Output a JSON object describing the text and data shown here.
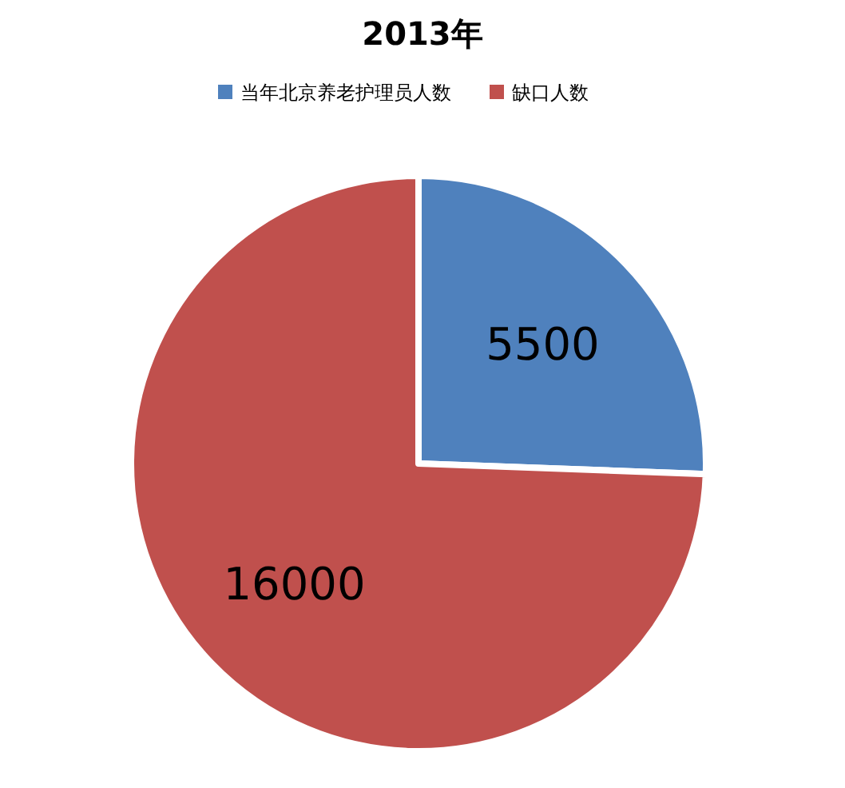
{
  "chart_data": {
    "type": "pie",
    "title": "2013年",
    "categories": [
      "当年北京养老护理员人数",
      "缺口人数"
    ],
    "values": [
      5500,
      16000
    ],
    "colors": [
      "#4f81bd",
      "#c0504d"
    ],
    "data_labels": true,
    "legend": "top"
  }
}
